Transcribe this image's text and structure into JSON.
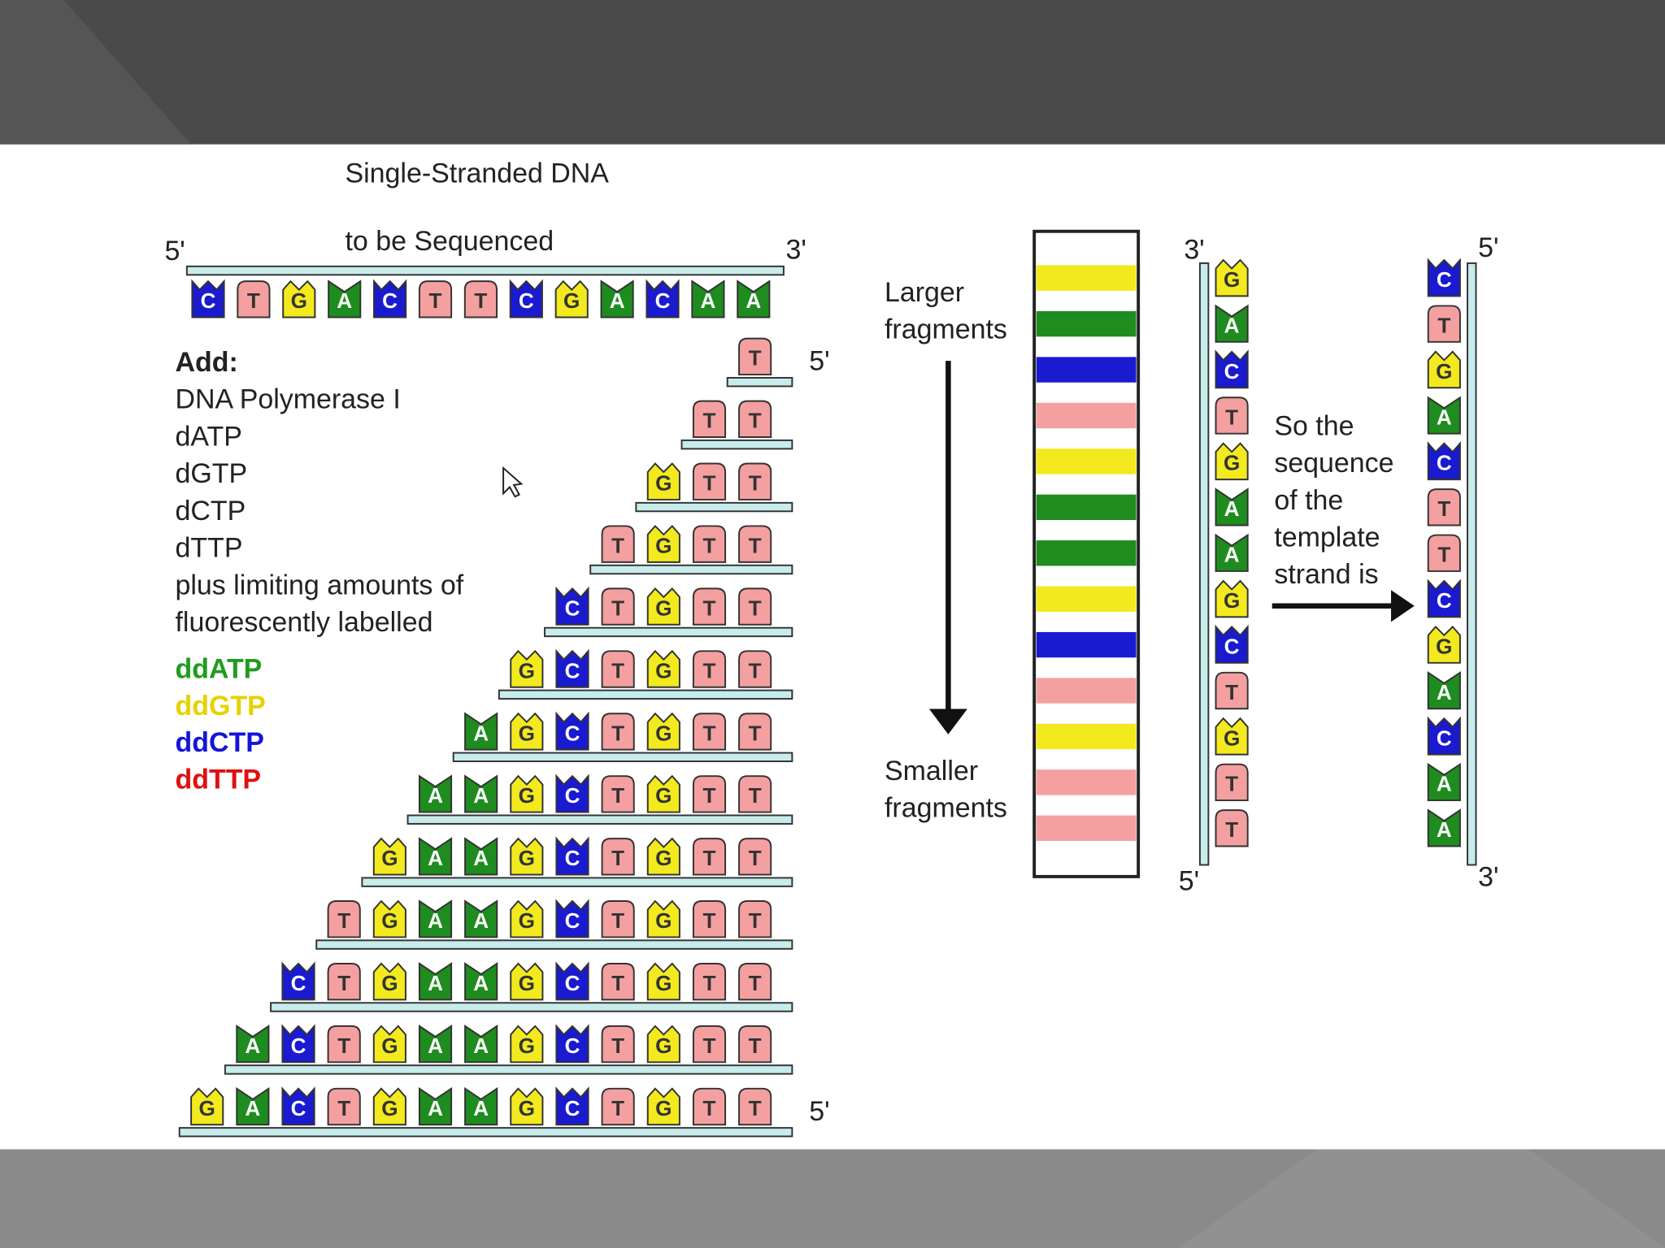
{
  "title_lines": [
    "Single-Stranded DNA",
    "to be Sequenced"
  ],
  "template": {
    "end_left": "5'",
    "end_right": "3'",
    "bases": [
      "C",
      "T",
      "G",
      "A",
      "C",
      "T",
      "T",
      "C",
      "G",
      "A",
      "C",
      "A",
      "A"
    ]
  },
  "reagents": {
    "heading": "Add:",
    "items": [
      "DNA Polymerase I",
      "dATP",
      "dGTP",
      "dCTP",
      "dTTP",
      "plus limiting amounts of",
      "fluorescently labelled"
    ],
    "dd": [
      {
        "label": "ddATP",
        "color": "#1f9c1f"
      },
      {
        "label": "ddGTP",
        "color": "#e6d200"
      },
      {
        "label": "ddCTP",
        "color": "#1414d8"
      },
      {
        "label": "ddTTP",
        "color": "#e01010"
      }
    ]
  },
  "fragments": {
    "end_label": "5'",
    "rows": [
      [
        "T"
      ],
      [
        "T",
        "T"
      ],
      [
        "G",
        "T",
        "T"
      ],
      [
        "T",
        "G",
        "T",
        "T"
      ],
      [
        "C",
        "T",
        "G",
        "T",
        "T"
      ],
      [
        "G",
        "C",
        "T",
        "G",
        "T",
        "T"
      ],
      [
        "A",
        "G",
        "C",
        "T",
        "G",
        "T",
        "T"
      ],
      [
        "A",
        "A",
        "G",
        "C",
        "T",
        "G",
        "T",
        "T"
      ],
      [
        "G",
        "A",
        "A",
        "G",
        "C",
        "T",
        "G",
        "T",
        "T"
      ],
      [
        "T",
        "G",
        "A",
        "A",
        "G",
        "C",
        "T",
        "G",
        "T",
        "T"
      ],
      [
        "C",
        "T",
        "G",
        "A",
        "A",
        "G",
        "C",
        "T",
        "G",
        "T",
        "T"
      ],
      [
        "A",
        "C",
        "T",
        "G",
        "A",
        "A",
        "G",
        "C",
        "T",
        "G",
        "T",
        "T"
      ],
      [
        "G",
        "A",
        "C",
        "T",
        "G",
        "A",
        "A",
        "G",
        "C",
        "T",
        "G",
        "T",
        "T"
      ]
    ]
  },
  "gel": {
    "top_label": [
      "Larger",
      "fragments"
    ],
    "bottom_label": [
      "Smaller",
      "fragments"
    ]
  },
  "read_strand": {
    "top": "3'",
    "bottom": "5'",
    "bases": [
      "G",
      "A",
      "C",
      "T",
      "G",
      "A",
      "A",
      "G",
      "C",
      "T",
      "G",
      "T",
      "T"
    ]
  },
  "conclusion": {
    "lines": [
      "So the",
      "sequence",
      "of the",
      "template",
      "strand is"
    ]
  },
  "template_result": {
    "top": "5'",
    "bottom": "3'",
    "bases": [
      "C",
      "T",
      "G",
      "A",
      "C",
      "T",
      "T",
      "C",
      "G",
      "A",
      "C",
      "A",
      "A"
    ]
  },
  "base_colors": {
    "A": {
      "fill": "#1e8c1e",
      "text": "#ffffff"
    },
    "C": {
      "fill": "#1a1ad0",
      "text": "#ffffff"
    },
    "G": {
      "fill": "#f2ea1e",
      "text": "#333333"
    },
    "T": {
      "fill": "#f4a0a0",
      "text": "#333333"
    }
  }
}
